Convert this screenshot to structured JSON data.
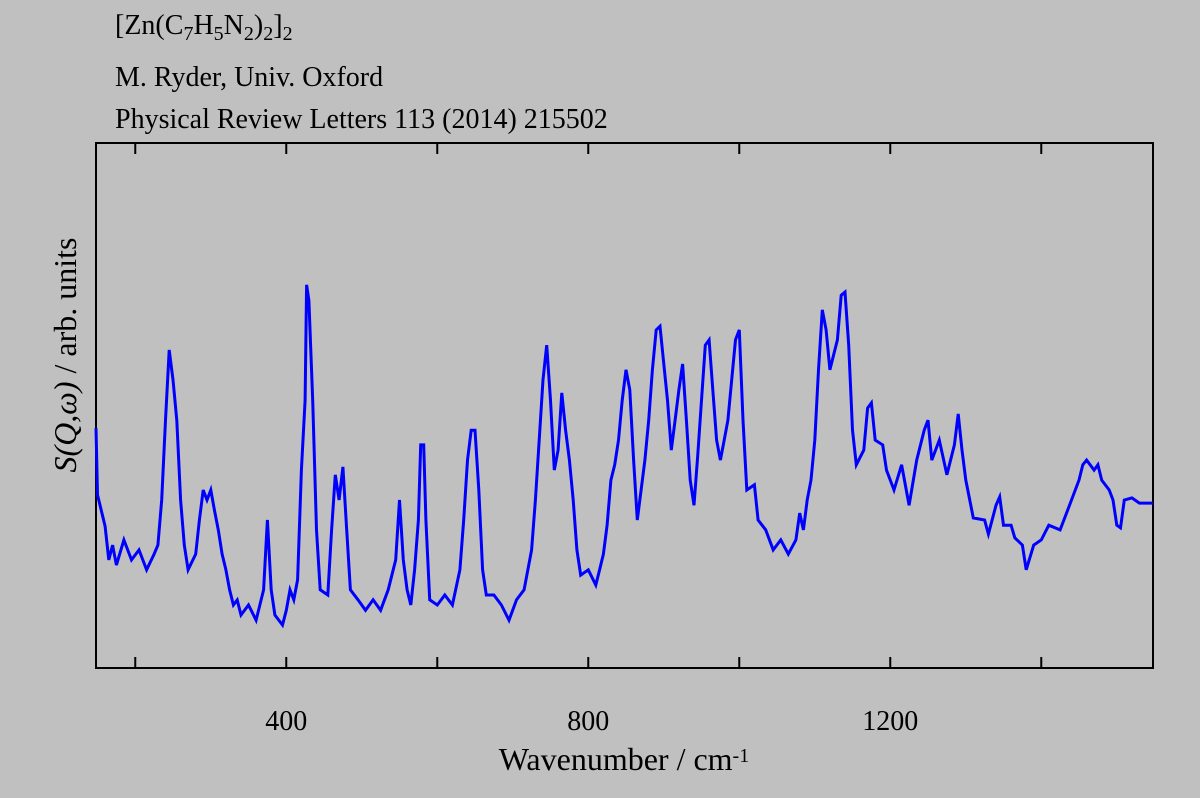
{
  "chart_data": {
    "type": "line",
    "title": "[Zn(C7H5N2)2]2",
    "subtitle": [
      "M. Ryder, Univ. Oxford",
      "Physical Review Letters 113 (2014) 215502"
    ],
    "xlabel": "Wavenumber / cm-1",
    "ylabel": "S(Q,ω) / arb. units",
    "xlim": [
      148,
      1548
    ],
    "ylim": [
      0,
      100
    ],
    "xticks": [
      400,
      800,
      1200
    ],
    "xminorticks": [
      200,
      600,
      1000,
      1400
    ],
    "grid": false,
    "series": [
      {
        "name": "S(Q,ω)",
        "color": "#0000ff",
        "x": [
          148,
          150,
          155,
          160,
          165,
          170,
          175,
          185,
          195,
          205,
          215,
          225,
          230,
          235,
          240,
          245,
          250,
          255,
          260,
          265,
          270,
          280,
          285,
          290,
          295,
          300,
          305,
          310,
          315,
          320,
          325,
          330,
          335,
          340,
          350,
          360,
          370,
          375,
          380,
          385,
          395,
          400,
          405,
          410,
          415,
          420,
          425,
          427,
          430,
          435,
          440,
          445,
          455,
          460,
          465,
          470,
          475,
          480,
          485,
          495,
          505,
          515,
          525,
          535,
          545,
          550,
          555,
          560,
          565,
          570,
          575,
          578,
          582,
          585,
          590,
          600,
          610,
          620,
          630,
          635,
          640,
          645,
          650,
          655,
          660,
          665,
          675,
          685,
          695,
          705,
          715,
          725,
          730,
          735,
          740,
          745,
          750,
          755,
          760,
          765,
          770,
          775,
          780,
          785,
          790,
          800,
          810,
          815,
          820,
          825,
          830,
          835,
          840,
          845,
          850,
          855,
          860,
          865,
          875,
          880,
          885,
          890,
          895,
          900,
          905,
          910,
          915,
          920,
          925,
          930,
          935,
          940,
          945,
          950,
          955,
          960,
          965,
          970,
          975,
          980,
          985,
          990,
          995,
          1000,
          1005,
          1010,
          1020,
          1025,
          1035,
          1045,
          1055,
          1065,
          1075,
          1080,
          1085,
          1090,
          1095,
          1100,
          1105,
          1110,
          1115,
          1120,
          1130,
          1135,
          1140,
          1145,
          1150,
          1155,
          1165,
          1170,
          1175,
          1180,
          1190,
          1195,
          1205,
          1215,
          1225,
          1235,
          1245,
          1250,
          1255,
          1265,
          1275,
          1285,
          1290,
          1295,
          1300,
          1310,
          1325,
          1330,
          1340,
          1345,
          1350,
          1360,
          1365,
          1375,
          1380,
          1390,
          1400,
          1410,
          1425,
          1430,
          1440,
          1450,
          1455,
          1460,
          1470,
          1475,
          1480,
          1490,
          1495,
          1500,
          1505,
          1510,
          1520,
          1530,
          1548
        ],
        "values": [
          45.7,
          33,
          30,
          27,
          20.6,
          23.4,
          19.6,
          24.4,
          20.6,
          22.5,
          18.7,
          21.7,
          23.4,
          32,
          47.2,
          60.6,
          54.9,
          47.2,
          32,
          23.4,
          18.7,
          21.7,
          28.2,
          33.9,
          32,
          33.9,
          30,
          26.3,
          21.7,
          18.7,
          14.9,
          12,
          12.95,
          10.1,
          12,
          9.1,
          14.9,
          28.2,
          14.9,
          10.1,
          8.2,
          11,
          14.9,
          13,
          16.8,
          37.7,
          51,
          73,
          70,
          51,
          26.3,
          14.9,
          13.9,
          26.3,
          36.8,
          32,
          38.3,
          26.3,
          14.9,
          13,
          11,
          13,
          11,
          14.9,
          20.6,
          32,
          20.6,
          14.9,
          12,
          18.7,
          28.2,
          42.5,
          42.5,
          28.2,
          13,
          12,
          13.9,
          12,
          18.7,
          28.2,
          39.6,
          45.3,
          45.3,
          33.9,
          18.7,
          13.9,
          13.9,
          12,
          9.1,
          13,
          14.9,
          22.5,
          32,
          43.4,
          54.9,
          61.5,
          51,
          37.7,
          41.5,
          52.4,
          45.3,
          39.6,
          32,
          22.5,
          17.7,
          18.7,
          15.8,
          18.7,
          21.7,
          27.2,
          35.8,
          38.7,
          43.4,
          51,
          56.8,
          53,
          39.6,
          28.2,
          39.6,
          47.2,
          56.8,
          64.4,
          65.1,
          57.9,
          51,
          41.5,
          47.2,
          53,
          57.9,
          47.2,
          35.8,
          31,
          40.4,
          51,
          61.5,
          62.5,
          53,
          43.4,
          39.6,
          43.4,
          47.2,
          54.9,
          62.5,
          64.4,
          47.2,
          33.9,
          34.9,
          28.2,
          26.3,
          22.5,
          24.4,
          21.7,
          24.4,
          29.5,
          26.3,
          32,
          35.8,
          43.4,
          56.8,
          68.2,
          64.4,
          56.8,
          62.5,
          71,
          71.6,
          61.5,
          45.3,
          38.7,
          41.5,
          49.5,
          50.5,
          43.4,
          42.5,
          37.7,
          33.9,
          38.7,
          31,
          39.6,
          45.3,
          47.2,
          39.6,
          43.4,
          36.8,
          42.5,
          48.4,
          41.5,
          35.8,
          28.6,
          28.2,
          25.5,
          31,
          32.6,
          27.2,
          27.2,
          24.8,
          23.4,
          18.7,
          23.4,
          24.4,
          27.2,
          26.3,
          28.2,
          32,
          35.8,
          38.7,
          39.6,
          37.7,
          38.7,
          35.8,
          33.9,
          32,
          27.2,
          26.7,
          32,
          32.4,
          31.4,
          31.4
        ]
      }
    ]
  }
}
